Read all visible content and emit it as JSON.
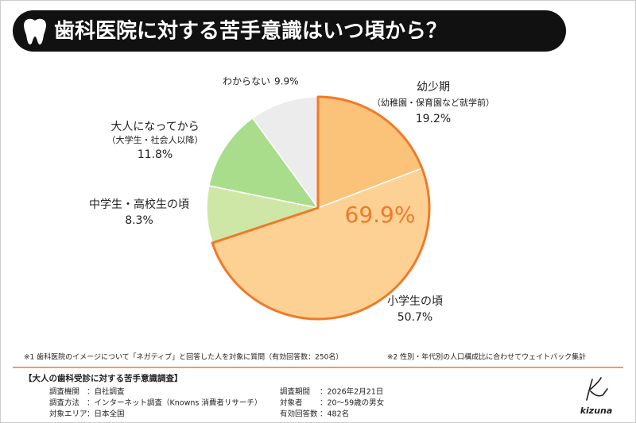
{
  "chart_data": {
    "type": "pie",
    "title": "歯科医院に対する苦手意識はいつ頃から？",
    "categories": [
      "幼少期",
      "小学生の頃",
      "中学生・高校生の頃",
      "大人になってから",
      "わからない"
    ],
    "sublabels": [
      "（幼稚園・保育園など就学前）",
      null,
      null,
      "（大学生・社会人以降）",
      null
    ],
    "values": [
      19.2,
      50.7,
      8.3,
      11.8,
      9.9
    ],
    "value_labels": [
      "19.2%",
      "50.7%",
      "8.3%",
      "11.8%",
      "9.9%"
    ],
    "colors": [
      "#fbc27a",
      "#fdd194",
      "#cfe7a6",
      "#a9dd8c",
      "#ececec"
    ],
    "highlight": {
      "value": 69.9,
      "label": "69.9%",
      "color": "#f07a28"
    }
  },
  "notes": [
    "※1 歯科医院のイメージについて「ネガティブ」と回答した人を対象に質問（有効回答数：250名）",
    "※2 性別・年代別の人口構成比に合わせてウェイトバック集計"
  ],
  "survey": {
    "title": "【大人の歯科受診に対する苦手意識調査】",
    "rows": [
      [
        {
          "label": "調査機関",
          "value": "：自社調査"
        },
        {
          "label": "調査期間",
          "value": "：2026年2月21日"
        }
      ],
      [
        {
          "label": "調査方法",
          "value": "：インターネット調査（Knowns 消費者リサーチ）"
        },
        {
          "label": "対象者",
          "value": "：20～59歳の男女"
        }
      ],
      [
        {
          "label": "対象エリア",
          "value": "：日本全国"
        },
        {
          "label": "有効回答数",
          "value": "：482名"
        }
      ]
    ]
  },
  "brand": "kizuna"
}
